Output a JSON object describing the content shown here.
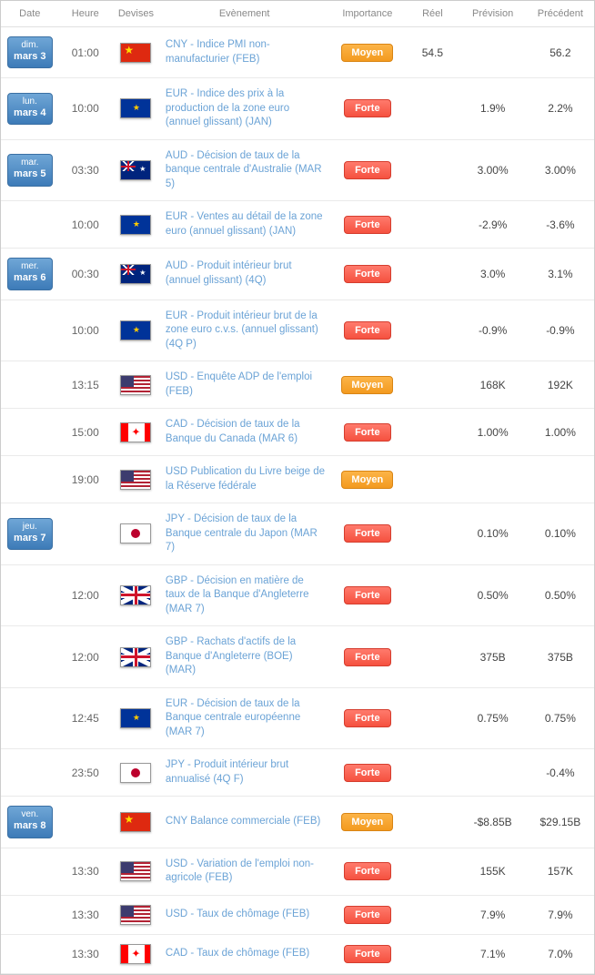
{
  "headers": {
    "date": "Date",
    "time": "Heure",
    "currency": "Devises",
    "event": "Evènement",
    "importance": "Importance",
    "real": "Réel",
    "forecast": "Prévision",
    "previous": "Précédent"
  },
  "importance_labels": {
    "moyen": "Moyen",
    "forte": "Forte"
  },
  "colors": {
    "link": "#6ba3d6",
    "badge_gradient_top": "#6fa6d6",
    "badge_gradient_bottom": "#3d7bb8",
    "moyen_top": "#fcb447",
    "moyen_bottom": "#f39a1f",
    "forte_top": "#ff7a6c",
    "forte_bottom": "#f5513f",
    "value_green": "#2e9e2e",
    "value_red": "#e04040",
    "border": "#e0e0e0"
  },
  "rows": [
    {
      "date_dow": "dim.",
      "date_day": "mars 3",
      "time": "01:00",
      "flag": "cn",
      "event": "CNY - Indice PMI non-manufacturier (FEB)",
      "importance": "moyen",
      "real": "54.5",
      "forecast": "",
      "previous": "56.2",
      "prev_class": ""
    },
    {
      "date_dow": "lun.",
      "date_day": "mars 4",
      "time": "10:00",
      "flag": "eu",
      "event": "EUR - Indice des prix à la production de la zone euro (annuel glissant) (JAN)",
      "importance": "forte",
      "real": "",
      "forecast": "1.9%",
      "previous": "2.2%",
      "prev_class": "val-green"
    },
    {
      "date_dow": "mar.",
      "date_day": "mars 5",
      "time": "03:30",
      "flag": "au",
      "event": "AUD - Décision de taux de la banque centrale d'Australie (MAR 5)",
      "importance": "forte",
      "real": "",
      "forecast": "3.00%",
      "previous": "3.00%",
      "prev_class": ""
    },
    {
      "date_dow": "",
      "date_day": "",
      "time": "10:00",
      "flag": "eu",
      "event": "EUR - Ventes au détail de la zone euro (annuel glissant) (JAN)",
      "importance": "forte",
      "real": "",
      "forecast": "-2.9%",
      "previous": "-3.6%",
      "prev_class": "val-red"
    },
    {
      "date_dow": "mer.",
      "date_day": "mars 6",
      "time": "00:30",
      "flag": "au",
      "event": "AUD - Produit intérieur brut (annuel glissant) (4Q)",
      "importance": "forte",
      "real": "",
      "forecast": "3.0%",
      "previous": "3.1%",
      "prev_class": ""
    },
    {
      "date_dow": "",
      "date_day": "",
      "time": "10:00",
      "flag": "eu",
      "event": "EUR - Produit intérieur brut de la zone euro c.v.s. (annuel glissant) (4Q P)",
      "importance": "forte",
      "real": "",
      "forecast": "-0.9%",
      "previous": "-0.9%",
      "prev_class": ""
    },
    {
      "date_dow": "",
      "date_day": "",
      "time": "13:15",
      "flag": "us",
      "event": "USD - Enquête ADP de l'emploi (FEB)",
      "importance": "moyen",
      "real": "",
      "forecast": "168K",
      "previous": "192K",
      "prev_class": ""
    },
    {
      "date_dow": "",
      "date_day": "",
      "time": "15:00",
      "flag": "ca",
      "event": "CAD - Décision de taux de la Banque du Canada (MAR 6)",
      "importance": "forte",
      "real": "",
      "forecast": "1.00%",
      "previous": "1.00%",
      "prev_class": ""
    },
    {
      "date_dow": "",
      "date_day": "",
      "time": "19:00",
      "flag": "us",
      "event": "USD Publication du Livre beige de la Réserve fédérale",
      "importance": "moyen",
      "real": "",
      "forecast": "",
      "previous": "",
      "prev_class": ""
    },
    {
      "date_dow": "jeu.",
      "date_day": "mars 7",
      "time": "",
      "flag": "jp",
      "event": "JPY - Décision de taux de la Banque centrale du Japon (MAR 7)",
      "importance": "forte",
      "real": "",
      "forecast": "0.10%",
      "previous": "0.10%",
      "prev_class": ""
    },
    {
      "date_dow": "",
      "date_day": "",
      "time": "12:00",
      "flag": "gb",
      "event": "GBP - Décision en matière de taux de la Banque d'Angleterre (MAR 7)",
      "importance": "forte",
      "real": "",
      "forecast": "0.50%",
      "previous": "0.50%",
      "prev_class": ""
    },
    {
      "date_dow": "",
      "date_day": "",
      "time": "12:00",
      "flag": "gb",
      "event": "GBP - Rachats d'actifs de la Banque d'Angleterre (BOE) (MAR)",
      "importance": "forte",
      "real": "",
      "forecast": "375B",
      "previous": "375B",
      "prev_class": ""
    },
    {
      "date_dow": "",
      "date_day": "",
      "time": "12:45",
      "flag": "eu",
      "event": "EUR - Décision de taux de la Banque centrale européenne (MAR 7)",
      "importance": "forte",
      "real": "",
      "forecast": "0.75%",
      "previous": "0.75%",
      "prev_class": ""
    },
    {
      "date_dow": "",
      "date_day": "",
      "time": "23:50",
      "flag": "jp",
      "event": "JPY - Produit intérieur brut annualisé (4Q F)",
      "importance": "forte",
      "real": "",
      "forecast": "",
      "previous": "-0.4%",
      "prev_class": ""
    },
    {
      "date_dow": "ven.",
      "date_day": "mars 8",
      "time": "",
      "flag": "cn",
      "event": "CNY Balance commerciale (FEB)",
      "importance": "moyen",
      "real": "",
      "forecast": "-$8.85B",
      "previous": "$29.15B",
      "prev_class": ""
    },
    {
      "date_dow": "",
      "date_day": "",
      "time": "13:30",
      "flag": "us",
      "event": "USD - Variation de l'emploi non-agricole (FEB)",
      "importance": "forte",
      "real": "",
      "forecast": "155K",
      "previous": "157K",
      "prev_class": ""
    },
    {
      "date_dow": "",
      "date_day": "",
      "time": "13:30",
      "flag": "us",
      "event": "USD - Taux de chômage (FEB)",
      "importance": "forte",
      "real": "",
      "forecast": "7.9%",
      "previous": "7.9%",
      "prev_class": ""
    },
    {
      "date_dow": "",
      "date_day": "",
      "time": "13:30",
      "flag": "ca",
      "event": "CAD - Taux de chômage (FEB)",
      "importance": "forte",
      "real": "",
      "forecast": "7.1%",
      "previous": "7.0%",
      "prev_class": ""
    }
  ]
}
